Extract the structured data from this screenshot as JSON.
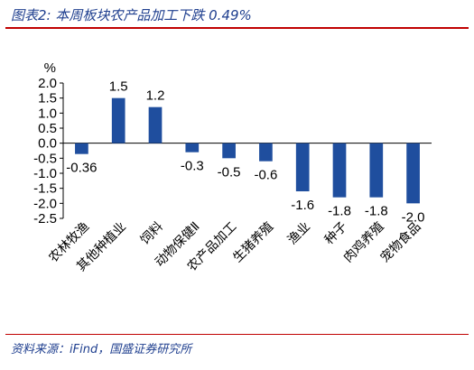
{
  "title": "图表2:  本周板块农产品加工下跌 0.49%",
  "source": "资料来源：iFind，国盛证券研究所",
  "colors": {
    "bar": "#1f4e9e",
    "title": "#1f3f8f",
    "rule": "#c00000"
  },
  "chart_data": {
    "type": "bar",
    "unit_label": "%",
    "categories": [
      "农林牧渔",
      "其他种植业",
      "饲料",
      "动物保健Ⅱ",
      "农产品加工",
      "生猪养殖",
      "渔业",
      "种子",
      "肉鸡养殖",
      "宠物食品"
    ],
    "values": [
      -0.36,
      1.5,
      1.2,
      -0.3,
      -0.5,
      -0.6,
      -1.6,
      -1.8,
      -1.8,
      -2.0
    ],
    "value_labels": [
      "-0.36",
      "1.5",
      "1.2",
      "-0.3",
      "-0.5",
      "-0.6",
      "-1.6",
      "-1.8",
      "-1.8",
      "-2.0"
    ],
    "ylim": [
      -2.5,
      2.0
    ],
    "yticks": [
      2.0,
      1.5,
      1.0,
      0.5,
      0.0,
      -0.5,
      -1.0,
      -1.5,
      -2.0,
      -2.5
    ],
    "ytick_labels": [
      "2.0",
      "1.5",
      "1.0",
      "0.5",
      "0.0",
      "-0.5",
      "-1.0",
      "-1.5",
      "-2.0",
      "-2.5"
    ],
    "grid": false,
    "legend": "none"
  }
}
